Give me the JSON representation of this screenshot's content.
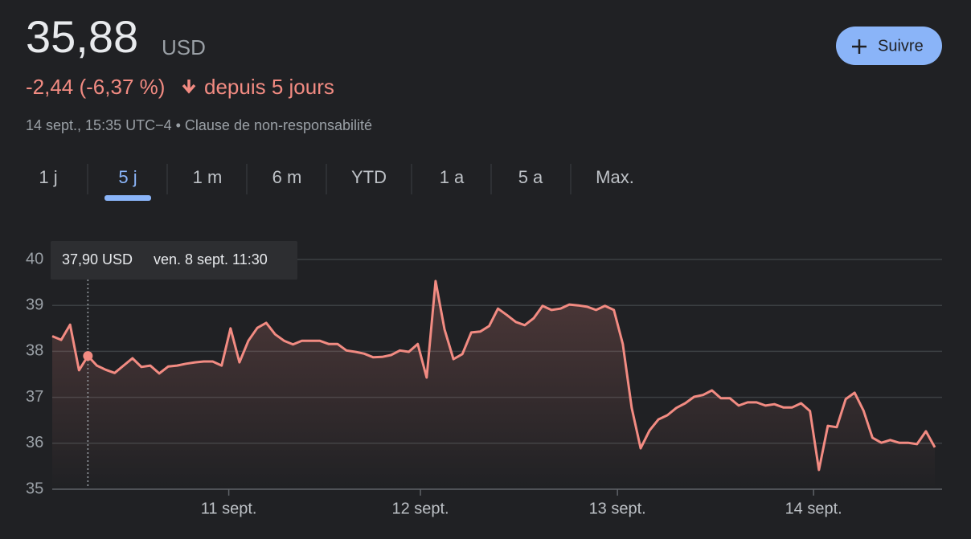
{
  "header": {
    "price": "35,88",
    "currency": "USD",
    "change": "-2,44 (-6,37 %)",
    "period": "depuis 5 jours",
    "timestamp": "14 sept., 15:35 UTC−4 • Clause de non-responsabilité",
    "follow_button": "Suivre"
  },
  "tabs": {
    "labels": [
      "1 j",
      "5 j",
      "1 m",
      "6 m",
      "YTD",
      "1 a",
      "5 a",
      "Max."
    ],
    "active": 1
  },
  "chart_data": {
    "type": "line",
    "color": "#f28b82",
    "grid": true,
    "values": [
      38.33,
      38.25,
      38.58,
      37.59,
      37.9,
      37.69,
      37.6,
      37.53,
      37.69,
      37.85,
      37.66,
      37.69,
      37.52,
      37.67,
      37.69,
      37.73,
      37.76,
      37.78,
      37.78,
      37.69,
      38.5,
      37.76,
      38.23,
      38.51,
      38.62,
      38.37,
      38.23,
      38.15,
      38.23,
      38.23,
      38.23,
      38.16,
      38.16,
      38.02,
      37.99,
      37.95,
      37.87,
      37.88,
      37.92,
      38.02,
      37.99,
      38.16,
      37.43,
      39.53,
      38.48,
      37.83,
      37.94,
      38.41,
      38.43,
      38.55,
      38.93,
      38.79,
      38.64,
      38.57,
      38.72,
      38.99,
      38.9,
      38.93,
      39.02,
      39.0,
      38.97,
      38.9,
      38.99,
      38.9,
      38.16,
      36.77,
      35.89,
      36.28,
      36.52,
      36.61,
      36.77,
      36.87,
      37.01,
      37.05,
      37.15,
      36.98,
      36.98,
      36.82,
      36.89,
      36.89,
      36.82,
      36.85,
      36.78,
      36.78,
      36.87,
      36.7,
      35.42,
      36.38,
      36.35,
      36.96,
      37.1,
      36.71,
      36.12,
      36.01,
      36.07,
      36.01,
      36.01,
      35.98,
      36.26,
      35.91
    ],
    "xlim": [
      0,
      99
    ],
    "xticks": [
      {
        "value": 19.8,
        "label": "11 sept."
      },
      {
        "value": 41.3,
        "label": "12 sept."
      },
      {
        "value": 63.4,
        "label": "13 sept."
      },
      {
        "value": 85.4,
        "label": "14 sept."
      }
    ],
    "ylim": [
      35,
      40
    ],
    "yticks": [
      35,
      36,
      37,
      38,
      39,
      40
    ],
    "tooltip": {
      "index": 4,
      "value_label": "37,90 USD",
      "date": "ven. 8 sept. 11:30"
    }
  }
}
